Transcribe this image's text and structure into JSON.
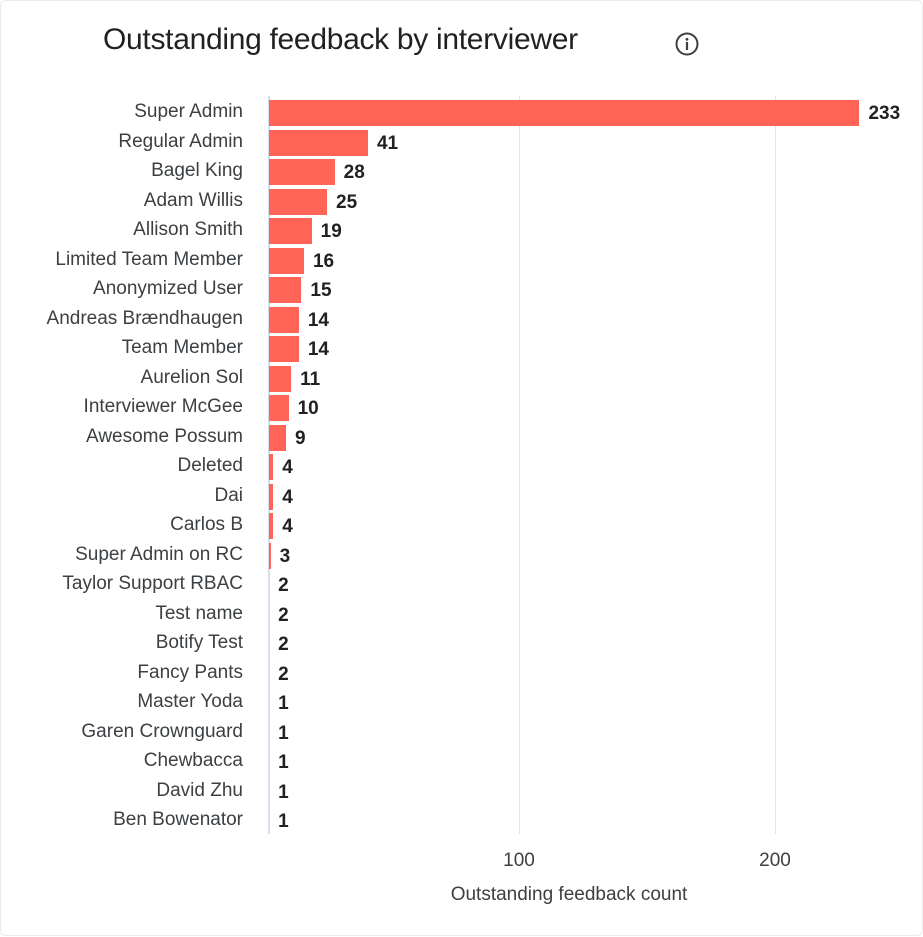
{
  "title": "Outstanding feedback by interviewer",
  "info_icon": "info-circle-icon",
  "colors": {
    "bar": "#ff6457",
    "axis": "#d6ddf0",
    "grid": "#e3e3e3"
  },
  "chart_data": {
    "type": "bar",
    "orientation": "horizontal",
    "title": "Outstanding feedback by interviewer",
    "xlabel": "Outstanding feedback count",
    "ylabel": "",
    "xlim": [
      2,
      240
    ],
    "x_ticks": [
      100,
      200
    ],
    "grid": true,
    "legend": null,
    "data_labels": true,
    "categories": [
      "Super Admin",
      "Regular Admin",
      "Bagel King",
      "Adam Willis",
      "Allison Smith",
      "Limited Team Member",
      "Anonymized User",
      "Andreas Brændhaugen",
      "Team Member",
      "Aurelion Sol",
      "Interviewer McGee",
      "Awesome Possum",
      "Deleted",
      "Dai",
      "Carlos B",
      "Super Admin on RC",
      "Taylor Support RBAC",
      "Test name",
      "Botify Test",
      "Fancy Pants",
      "Master Yoda",
      "Garen Crownguard",
      "Chewbacca",
      "David Zhu",
      "Ben Bowenator"
    ],
    "values": [
      233,
      41,
      28,
      25,
      19,
      16,
      15,
      14,
      14,
      11,
      10,
      9,
      4,
      4,
      4,
      3,
      2,
      2,
      2,
      2,
      1,
      1,
      1,
      1,
      1
    ]
  }
}
